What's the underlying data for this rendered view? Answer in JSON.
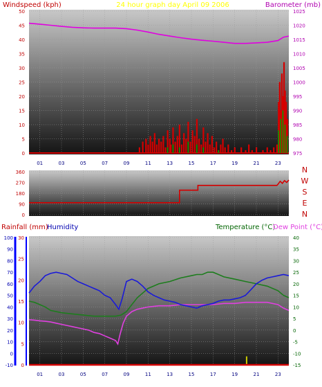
{
  "page_title": "24 hour graph day   April 09 2006",
  "colors": {
    "background": "#ffffff",
    "plot_top": "#c8c8c8",
    "plot_bottom": "#141414",
    "title": "#ffff00",
    "wind": "#d40000",
    "wind_gust": "#00a000",
    "wind_dir": "#d40000",
    "baro": "#e000e0",
    "rain": "#0000ff",
    "humidity": "#1a1ad8",
    "temperature": "#1d7d1d",
    "dew_point": "#e040e0",
    "rain_bar": "#cccc00",
    "rain_label": "#c00000",
    "axis_red": "#c00000",
    "axis_blue": "#0000b0",
    "axis_green": "#006400",
    "axis_mag": "#b000b0"
  },
  "panel1": {
    "left_label": "Windspeed (kph)",
    "right_label": "Barometer (mb)"
  },
  "panel2": {
    "compass_labels": [
      "N",
      "W",
      "S",
      "E",
      "N"
    ]
  },
  "panel3": {
    "rain_label": "Rainfall (mm)",
    "humidity_label": "Humidity",
    "temp_label": "Temperature (°C)",
    "dew_label": "Dew Point (°C)"
  },
  "chart_data": [
    {
      "type": "bar",
      "title": "24 hour graph day   April 09 2006",
      "xlabel": "",
      "ylabel": "Windspeed (kph)",
      "ylabel_right": "Barometer (mb)",
      "x_ticks": [
        "01",
        "03",
        "05",
        "07",
        "09",
        "11",
        "13",
        "15",
        "17",
        "19",
        "21",
        "23"
      ],
      "ylim": [
        0,
        50
      ],
      "y_ticks": [
        0,
        5,
        10,
        15,
        20,
        25,
        30,
        35,
        40,
        45,
        50
      ],
      "y2lim": [
        975,
        1025
      ],
      "y2_ticks": [
        975,
        980,
        985,
        990,
        995,
        1000,
        1005,
        1010,
        1015,
        1020,
        1025
      ],
      "series": [
        {
          "name": "Windspeed",
          "type": "bar",
          "axis": "left",
          "x": [
            10.2,
            10.5,
            10.8,
            11.0,
            11.2,
            11.4,
            11.6,
            11.8,
            12.0,
            12.2,
            12.4,
            12.6,
            12.8,
            13.0,
            13.1,
            13.3,
            13.5,
            13.7,
            13.9,
            14.1,
            14.3,
            14.5,
            14.7,
            14.9,
            15.1,
            15.3,
            15.5,
            15.7,
            15.9,
            16.1,
            16.3,
            16.5,
            16.7,
            16.9,
            17.1,
            17.3,
            17.5,
            17.7,
            17.9,
            18.1,
            18.4,
            18.7,
            19.0,
            19.3,
            19.6,
            20.0,
            20.3,
            20.6,
            21.0,
            21.3,
            21.6,
            22.0,
            22.3,
            22.6,
            22.9,
            23.05,
            23.15,
            23.25,
            23.35,
            23.45,
            23.55,
            23.65,
            23.75,
            23.85
          ],
          "y": [
            2,
            4,
            5,
            3,
            6,
            4,
            7,
            3,
            5,
            4,
            6,
            2,
            8,
            5,
            3,
            9,
            4,
            6,
            10,
            3,
            7,
            5,
            11,
            4,
            8,
            6,
            12,
            5,
            3,
            9,
            4,
            7,
            3,
            6,
            2,
            4,
            1,
            3,
            5,
            2,
            3,
            1,
            2,
            0,
            2,
            1,
            3,
            1,
            2,
            0,
            1,
            2,
            1,
            2,
            3,
            18,
            25,
            15,
            28,
            20,
            32,
            22,
            18,
            12
          ]
        },
        {
          "name": "Wind gust",
          "type": "bar",
          "axis": "left",
          "x": [
            12.8,
            13.3,
            13.9,
            14.7,
            15.5,
            16.1,
            17.5,
            23.05,
            23.25,
            23.45,
            23.65,
            23.85
          ],
          "y": [
            2,
            3,
            2,
            4,
            3,
            2,
            1,
            8,
            12,
            15,
            10,
            6
          ]
        },
        {
          "name": "Barometer",
          "type": "line",
          "axis": "right",
          "x": [
            0,
            1,
            2,
            3,
            4,
            5,
            6,
            7,
            8,
            9,
            10,
            11,
            12,
            13,
            14,
            15,
            16,
            17,
            18,
            19,
            20,
            21,
            22,
            23,
            23.5,
            24
          ],
          "y": [
            1020.7,
            1020.4,
            1020.0,
            1019.6,
            1019.3,
            1019.1,
            1019.0,
            1019.0,
            1019.0,
            1018.8,
            1018.3,
            1017.6,
            1016.8,
            1016.2,
            1015.6,
            1015.1,
            1014.7,
            1014.4,
            1014.0,
            1013.6,
            1013.6,
            1013.8,
            1014.0,
            1014.6,
            1015.8,
            1016.2
          ]
        }
      ]
    },
    {
      "type": "line",
      "title": "",
      "xlabel": "",
      "ylabel": "",
      "ylim": [
        0,
        360
      ],
      "y_ticks": [
        0,
        90,
        180,
        270,
        360
      ],
      "series": [
        {
          "name": "Wind direction",
          "x": [
            0,
            13.9,
            13.9,
            15.6,
            15.6,
            22.9,
            23.0,
            23.2,
            23.4,
            23.6,
            23.8,
            24
          ],
          "y": [
            100,
            100,
            205,
            205,
            245,
            245,
            255,
            280,
            262,
            285,
            270,
            290
          ]
        }
      ]
    },
    {
      "type": "line",
      "title": "",
      "xlabel": "",
      "ylabel": "Rainfall (mm)",
      "ylabel_right": "Temperature (°C)",
      "x_ticks": [
        "01",
        "03",
        "05",
        "07",
        "09",
        "11",
        "13",
        "15",
        "17",
        "19",
        "21",
        "23"
      ],
      "rain_ylim": [
        0,
        30
      ],
      "rain_ticks": [
        0,
        5,
        10,
        15,
        20,
        25,
        30
      ],
      "humidity_ylim": [
        -10,
        100
      ],
      "humidity_ticks": [
        -10,
        0,
        10,
        20,
        30,
        40,
        50,
        60,
        70,
        80,
        90,
        100
      ],
      "temp_ylim": [
        -15,
        40
      ],
      "temp_ticks": [
        -15,
        -10,
        -5,
        0,
        5,
        10,
        15,
        20,
        25,
        30,
        35,
        40
      ],
      "series": [
        {
          "name": "Humidity",
          "axis": "humidity",
          "x": [
            0,
            0.5,
            1,
            1.5,
            2,
            2.5,
            3,
            3.5,
            4,
            4.5,
            5,
            5.5,
            6,
            6.5,
            7,
            7.5,
            8,
            8.3,
            8.6,
            9,
            9.5,
            10,
            10.5,
            11,
            11.5,
            12,
            12.5,
            13,
            13.5,
            14,
            14.5,
            15,
            15.5,
            16,
            16.5,
            17,
            17.5,
            18,
            18.5,
            19,
            19.5,
            20,
            20.5,
            21,
            21.5,
            22,
            22.5,
            23,
            23.5,
            24
          ],
          "y": [
            52,
            58,
            62,
            67,
            69,
            70,
            69,
            68,
            65,
            62,
            60,
            58,
            56,
            54,
            50,
            48,
            42,
            38,
            47,
            62,
            64,
            62,
            58,
            53,
            50,
            48,
            46,
            45,
            44,
            42,
            41,
            40,
            39,
            41,
            42,
            43,
            45,
            46,
            46,
            47,
            48,
            50,
            55,
            60,
            63,
            65,
            66,
            67,
            68,
            67
          ]
        },
        {
          "name": "Temperature",
          "axis": "temp",
          "x": [
            0,
            0.5,
            1,
            1.5,
            2,
            3,
            4,
            5,
            6,
            7,
            8,
            8.5,
            9,
            9.5,
            10,
            10.5,
            11,
            11.5,
            12,
            13,
            14,
            15,
            15.5,
            16,
            16.5,
            17,
            17.5,
            18,
            19,
            20,
            21,
            22,
            23,
            23.5,
            24
          ],
          "y": [
            12.5,
            12,
            11,
            10,
            8.5,
            7.5,
            7,
            6.5,
            6,
            6,
            6,
            6.5,
            8,
            11,
            14,
            16,
            18,
            19,
            20,
            21,
            22.5,
            23.5,
            24,
            24,
            25,
            25,
            24,
            23,
            22,
            21,
            20,
            19,
            17,
            15,
            14
          ]
        },
        {
          "name": "Dew Point",
          "axis": "temp",
          "x": [
            0,
            0.5,
            1,
            1.5,
            2,
            2.5,
            3,
            3.5,
            4,
            4.5,
            5,
            5.5,
            6,
            6.5,
            7,
            7.5,
            8,
            8.2,
            8.4,
            8.7,
            9,
            9.5,
            10,
            11,
            12,
            13,
            14,
            15,
            16,
            17,
            18,
            19,
            20,
            21,
            22,
            23,
            23.5,
            24
          ],
          "y": [
            4.5,
            4.3,
            4,
            3.8,
            3.5,
            3,
            2.5,
            2,
            1.5,
            1,
            0.5,
            0,
            -1,
            -1.5,
            -2.5,
            -3.5,
            -4.5,
            -6,
            -2,
            3,
            6,
            8,
            9,
            10,
            10.5,
            10.5,
            11,
            11,
            11,
            11,
            11.5,
            11.5,
            12,
            12,
            12,
            11,
            9.5,
            8.5
          ]
        },
        {
          "name": "Rainfall",
          "axis": "rain",
          "type": "bar",
          "x": [
            20.1
          ],
          "y": [
            2
          ]
        }
      ]
    }
  ]
}
